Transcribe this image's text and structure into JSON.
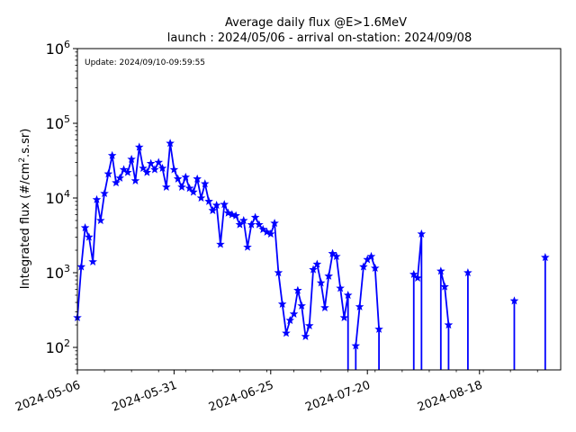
{
  "chart_data": {
    "type": "line",
    "title_line1": "Average daily flux @E>1.6MeV",
    "title_line2": "launch : 2024/05/06 - arrival on-station: 2024/09/08",
    "annotation": "Update: 2024/09/10-09:59:55",
    "ylabel": "Integrated flux (#/cm",
    "ylabel_sup": "2",
    "ylabel_tail": ".s.sr)",
    "y_scale": "log",
    "ylim": [
      50,
      1000000
    ],
    "xlim": [
      "2024-05-06",
      "2024-09-08"
    ],
    "x_ticks": [
      "2024-05-06",
      "2024-05-31",
      "2024-06-25",
      "2024-07-20",
      "2024-08-18"
    ],
    "y_ticks": [
      {
        "value": 100,
        "base": "10",
        "exp": "2"
      },
      {
        "value": 1000,
        "base": "10",
        "exp": "3"
      },
      {
        "value": 10000,
        "base": "10",
        "exp": "4"
      },
      {
        "value": 100000,
        "base": "10",
        "exp": "5"
      },
      {
        "value": 1000000,
        "base": "10",
        "exp": "6"
      }
    ],
    "series": [
      {
        "color": "#0000ff",
        "marker": "star",
        "segments": [
          {
            "x": [
              "2024-05-06",
              "2024-05-07",
              "2024-05-08",
              "2024-05-09",
              "2024-05-10",
              "2024-05-11",
              "2024-05-12",
              "2024-05-13",
              "2024-05-14",
              "2024-05-15",
              "2024-05-16",
              "2024-05-17",
              "2024-05-18",
              "2024-05-19",
              "2024-05-20",
              "2024-05-21",
              "2024-05-22",
              "2024-05-23",
              "2024-05-24",
              "2024-05-25",
              "2024-05-26",
              "2024-05-27",
              "2024-05-28",
              "2024-05-29",
              "2024-05-30",
              "2024-05-31",
              "2024-06-01",
              "2024-06-02",
              "2024-06-03",
              "2024-06-04",
              "2024-06-05",
              "2024-06-06",
              "2024-06-07",
              "2024-06-08",
              "2024-06-09",
              "2024-06-10",
              "2024-06-11",
              "2024-06-12",
              "2024-06-13",
              "2024-06-14",
              "2024-06-15",
              "2024-06-16",
              "2024-06-17",
              "2024-06-18",
              "2024-06-19",
              "2024-06-20",
              "2024-06-21",
              "2024-06-22",
              "2024-06-23",
              "2024-06-24",
              "2024-06-25",
              "2024-06-26",
              "2024-06-27",
              "2024-06-28",
              "2024-06-29",
              "2024-06-30",
              "2024-07-01",
              "2024-07-02",
              "2024-07-03",
              "2024-07-04",
              "2024-07-05",
              "2024-07-06",
              "2024-07-07",
              "2024-07-08",
              "2024-07-09",
              "2024-07-10",
              "2024-07-11"
            ],
            "y": [
              250,
              1200,
              4000,
              3000,
              1400,
              9500,
              5000,
              11500,
              21000,
              37000,
              16000,
              18500,
              24000,
              22000,
              33000,
              17000,
              48000,
              25000,
              22000,
              29000,
              24000,
              30000,
              25000,
              14000,
              54000,
              24000,
              18000,
              14000,
              19000,
              13500,
              12000,
              18000,
              10000,
              15500,
              9000,
              6800,
              8000,
              2400,
              8200,
              6300,
              6000,
              5800,
              4400,
              5000,
              2200,
              4400,
              5500,
              4400,
              3800,
              3500,
              3300,
              4600,
              1000,
              380,
              155,
              230,
              280,
              580,
              360,
              140,
              195,
              1100,
              1300,
              730,
              340,
              900,
              1800
            ],
            "drop_end": false
          },
          {
            "x": [
              "2024-07-11",
              "2024-07-12",
              "2024-07-13",
              "2024-07-14",
              "2024-07-15"
            ],
            "y": [
              1800,
              1650,
              620,
              250,
              500
            ],
            "drop_end": true
          },
          {
            "x": [
              "2024-07-17",
              "2024-07-18",
              "2024-07-19",
              "2024-07-20",
              "2024-07-21",
              "2024-07-22",
              "2024-07-23"
            ],
            "y": [
              105,
              350,
              1200,
              1500,
              1650,
              1150,
              175
            ],
            "drop_start": true,
            "drop_end": true
          },
          {
            "x": [
              "2024-08-01",
              "2024-08-02",
              "2024-08-03"
            ],
            "y": [
              950,
              850,
              3300
            ],
            "drop_start": true,
            "drop_end": true
          },
          {
            "x": [
              "2024-08-08",
              "2024-08-09",
              "2024-08-10"
            ],
            "y": [
              1050,
              650,
              200
            ],
            "drop_start": true,
            "drop_end": true
          },
          {
            "x": [
              "2024-08-15"
            ],
            "y": [
              1000
            ],
            "drop_start": true,
            "drop_end": true
          },
          {
            "x": [
              "2024-08-27"
            ],
            "y": [
              420
            ],
            "drop_start": true,
            "drop_end": true
          },
          {
            "x": [
              "2024-09-04"
            ],
            "y": [
              1600
            ],
            "drop_start": true,
            "drop_end": true
          }
        ]
      }
    ],
    "grid": false,
    "legend": "none"
  }
}
